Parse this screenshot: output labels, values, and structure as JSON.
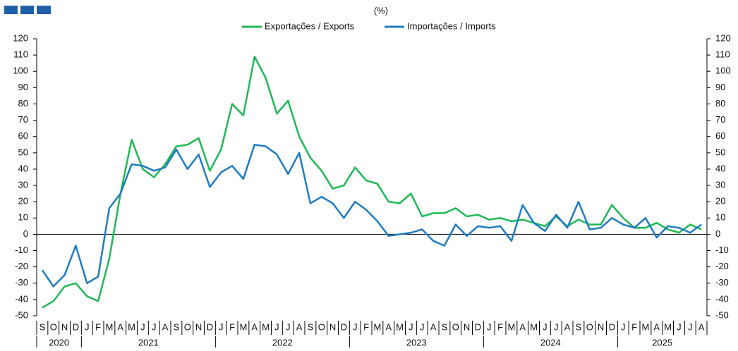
{
  "chart_data": {
    "type": "line",
    "title": "(%)",
    "categories": [
      "S",
      "O",
      "N",
      "D",
      "J",
      "F",
      "M",
      "A",
      "M",
      "J",
      "J",
      "A",
      "S",
      "O",
      "N",
      "D",
      "J",
      "F",
      "M",
      "A",
      "M",
      "J",
      "J",
      "A",
      "S",
      "O",
      "N",
      "D",
      "J",
      "F",
      "M",
      "A",
      "M",
      "J",
      "J",
      "A",
      "S",
      "O",
      "N",
      "D",
      "J",
      "F",
      "M",
      "A",
      "M",
      "J",
      "J",
      "A",
      "S",
      "O",
      "N",
      "D",
      "J",
      "F",
      "M",
      "A",
      "M",
      "J",
      "J",
      "A"
    ],
    "year_groups": [
      {
        "label": "2020",
        "count": 4
      },
      {
        "label": "2021",
        "count": 12
      },
      {
        "label": "2022",
        "count": 12
      },
      {
        "label": "2023",
        "count": 12
      },
      {
        "label": "2024",
        "count": 12
      },
      {
        "label": "2025",
        "count": 8
      }
    ],
    "series": [
      {
        "name": "Exportações / Exports",
        "color": "#1db954",
        "values": [
          -45,
          -41,
          -32,
          -30,
          -38,
          -41,
          -15,
          25,
          58,
          40,
          35,
          43,
          54,
          55,
          59,
          39,
          52,
          80,
          73,
          109,
          96,
          74,
          82,
          60,
          47,
          39,
          28,
          30,
          41,
          33,
          31,
          20,
          19,
          25,
          11,
          13,
          13,
          16,
          11,
          12,
          9,
          10,
          8,
          9,
          7,
          5,
          11,
          5,
          9,
          6,
          6,
          18,
          10,
          4,
          4,
          7,
          3,
          1,
          6,
          3
        ]
      },
      {
        "name": "Importações / Imports",
        "color": "#1f7bc1",
        "values": [
          -22,
          -32,
          -25,
          -7,
          -30,
          -26,
          16,
          25,
          43,
          42,
          39,
          41,
          52,
          40,
          49,
          29,
          38,
          42,
          34,
          55,
          54,
          49,
          37,
          50,
          19,
          23,
          19,
          10,
          20,
          15,
          8,
          -1,
          0,
          1,
          3,
          -4,
          -7,
          6,
          -1,
          5,
          4,
          5,
          -4,
          18,
          7,
          2,
          12,
          4,
          20,
          3,
          4,
          10,
          6,
          4,
          10,
          -2,
          5,
          4,
          1,
          6
        ]
      }
    ],
    "ylim": [
      -50,
      120
    ],
    "yticks": [
      -50,
      -40,
      -30,
      -20,
      -10,
      0,
      10,
      20,
      30,
      40,
      50,
      60,
      70,
      80,
      90,
      100,
      110,
      120
    ],
    "y2lim": [
      -50,
      120
    ],
    "y2ticks": [
      -50,
      -40,
      -30,
      -20,
      -10,
      0,
      10,
      20,
      30,
      40,
      50,
      60,
      70,
      80,
      90,
      100,
      110,
      120
    ]
  }
}
